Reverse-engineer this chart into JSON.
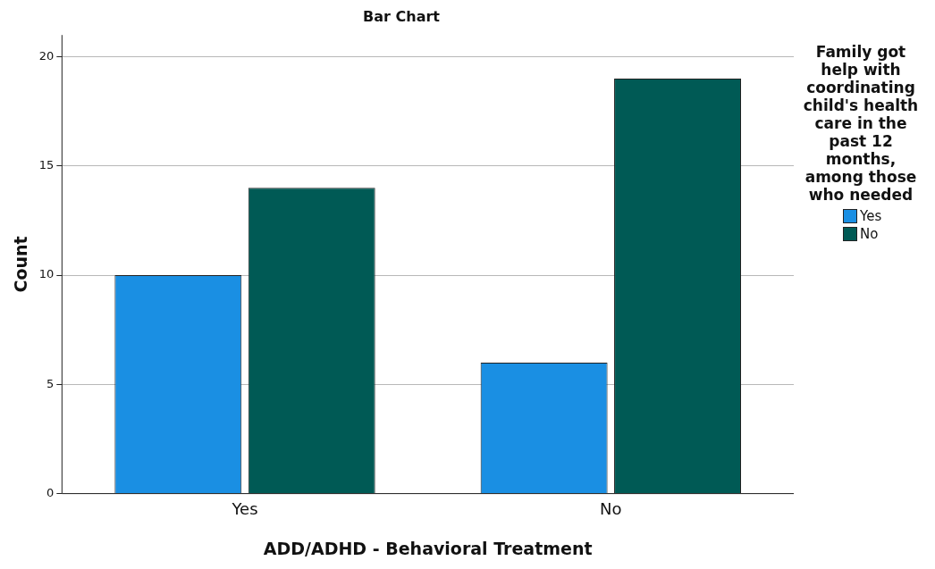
{
  "chart_data": {
    "type": "bar",
    "title": "Bar Chart",
    "xlabel": "ADD/ADHD - Behavioral Treatment",
    "ylabel": "Count",
    "legend_title": "Family got help with coordinating child's health care in the past 12 months, among those who needed",
    "categories": [
      "Yes",
      "No"
    ],
    "series": [
      {
        "name": "Yes",
        "color": "#1a8fe3",
        "values": [
          10,
          6
        ]
      },
      {
        "name": "No",
        "color": "#005a55",
        "values": [
          14,
          19
        ]
      }
    ],
    "ylim": [
      0,
      21
    ],
    "yticks": [
      0,
      5,
      10,
      15,
      20
    ],
    "grid": "y",
    "legend": "right"
  }
}
